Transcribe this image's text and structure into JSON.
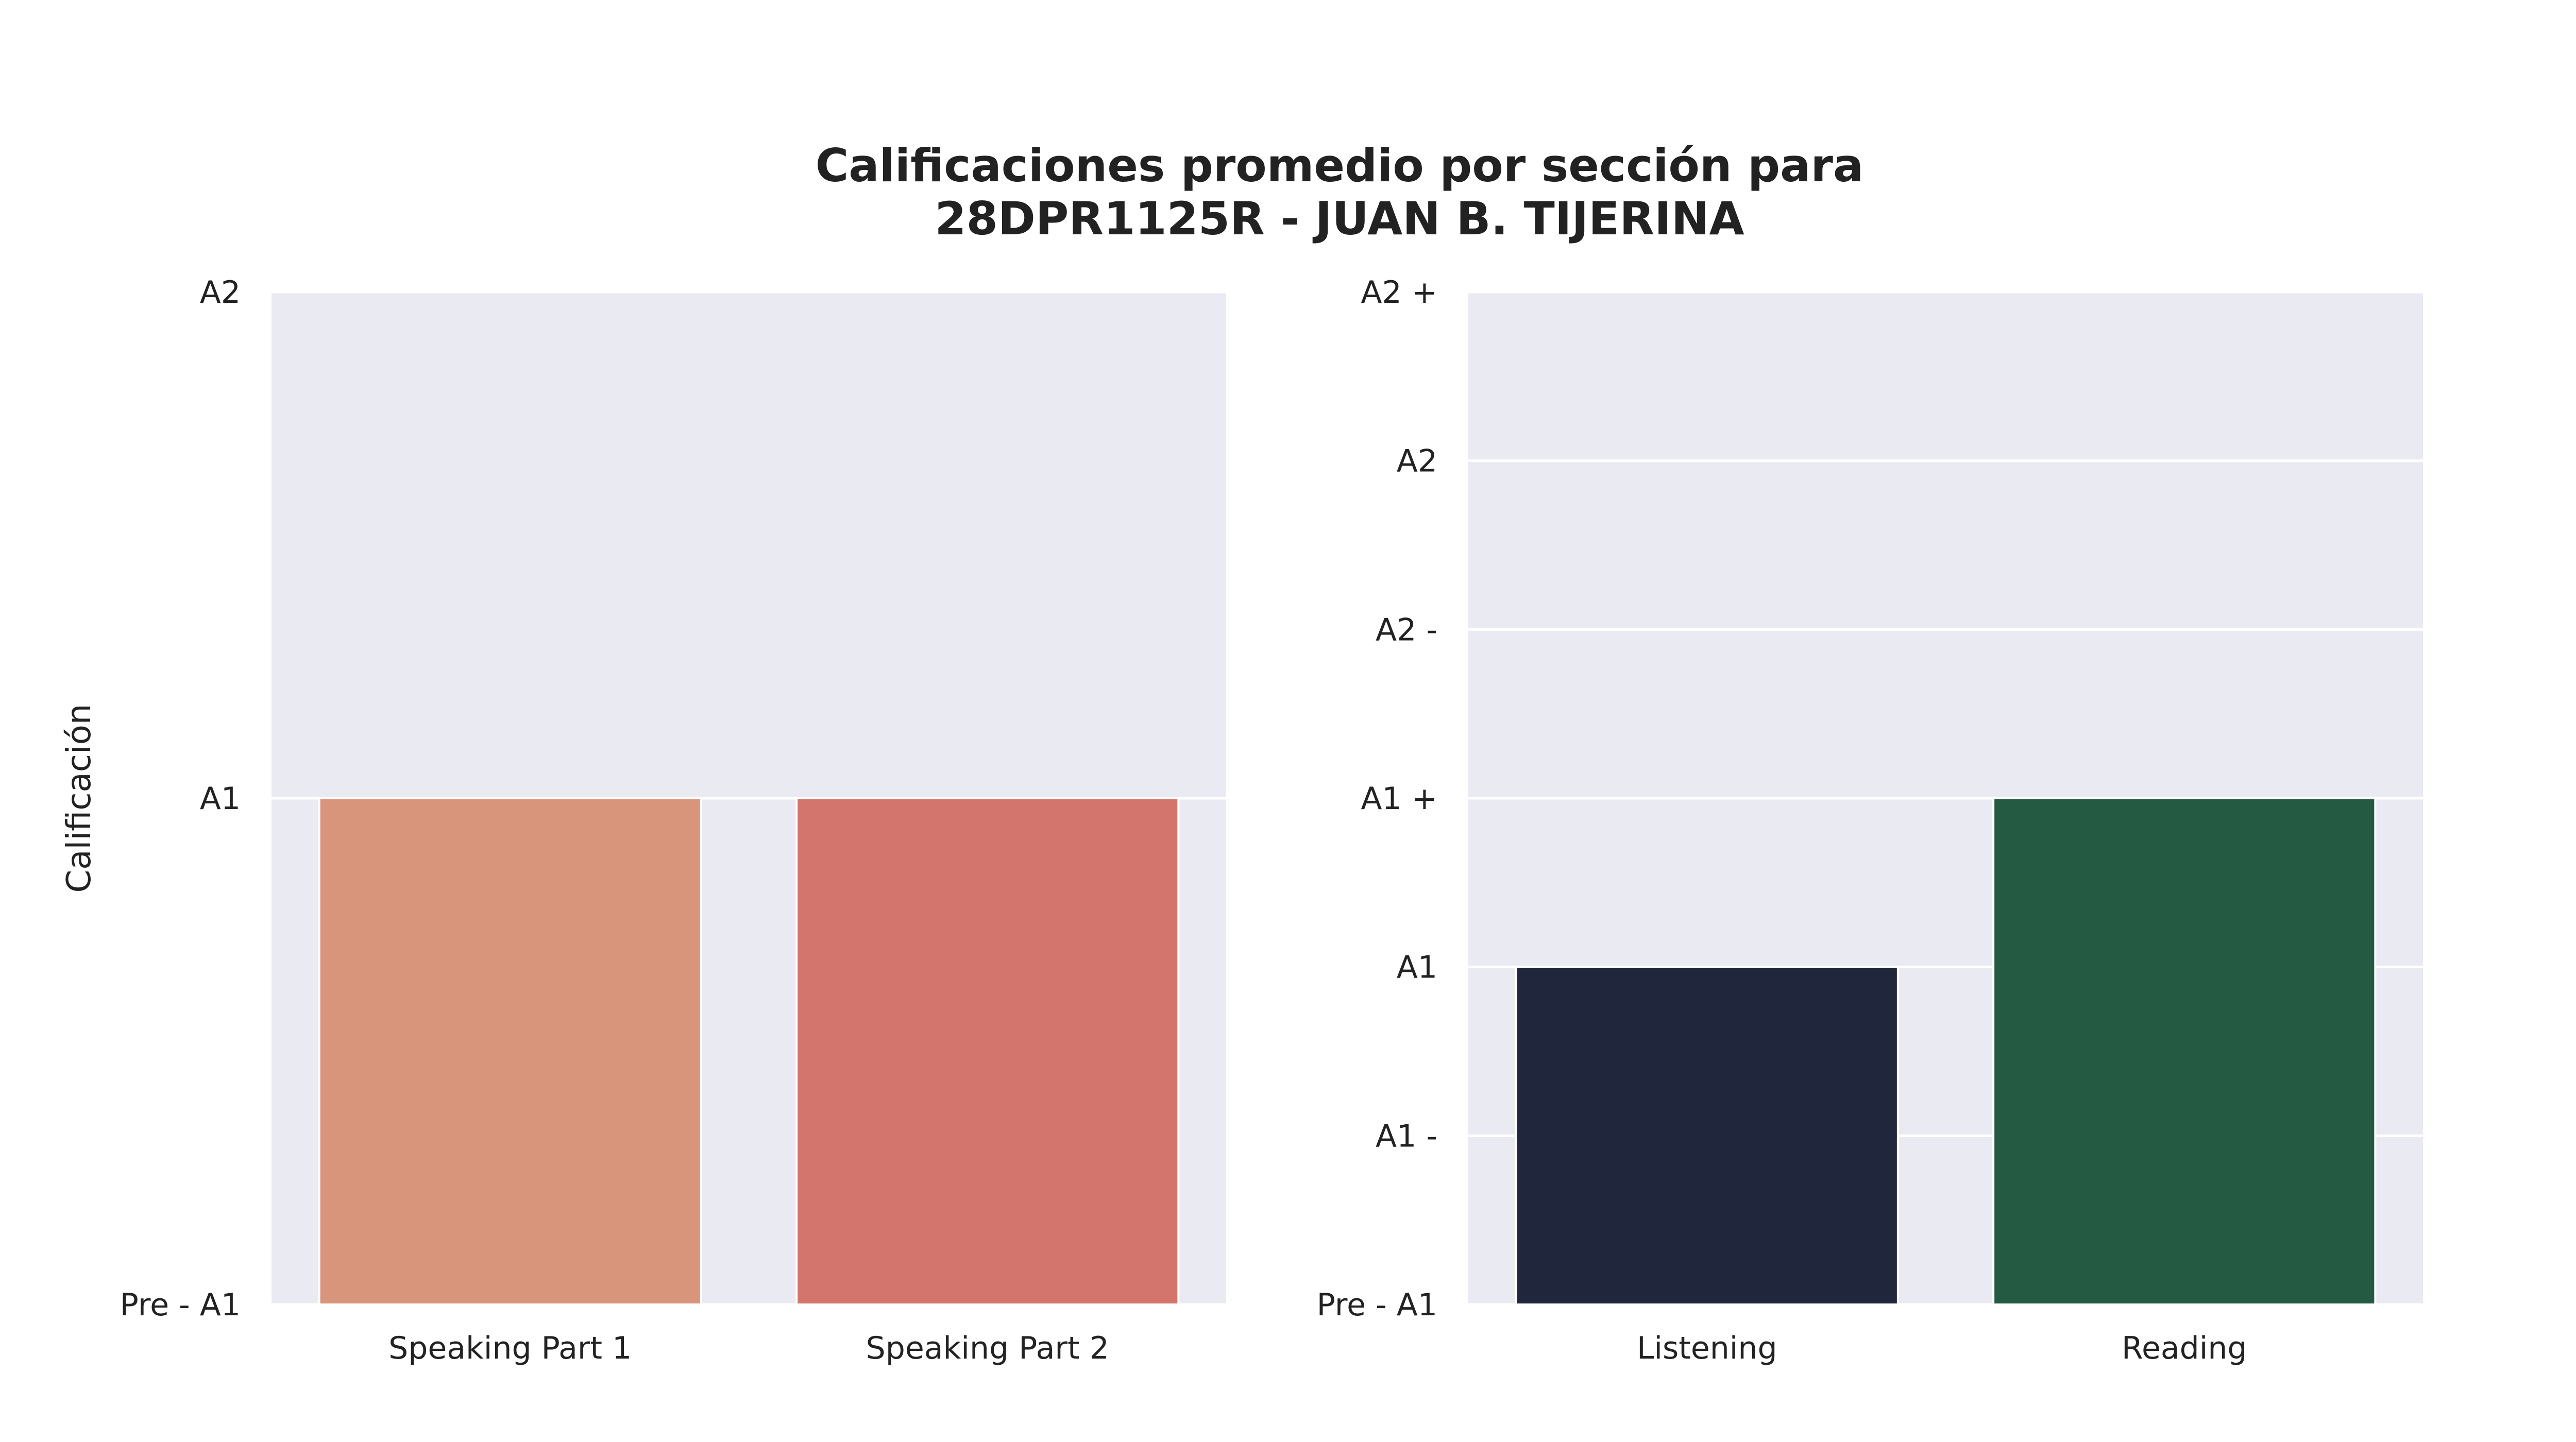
{
  "chart_data": [
    {
      "type": "bar",
      "title": "Calificaciones promedio por sección para\n28DPR1125R - JUAN B. TIJERINA",
      "ylabel": "Calificación",
      "xlabel": "",
      "categories": [
        "Speaking Part 1",
        "Speaking Part 2"
      ],
      "y_levels": [
        "Pre - A1",
        "A1",
        "A2"
      ],
      "values": [
        "A1",
        "A1"
      ],
      "value_index": [
        1,
        1
      ],
      "ylim_index": [
        0,
        2
      ],
      "grid": true,
      "colors": [
        "#d9957b",
        "#d3756c"
      ],
      "background": "#eaeaf2"
    },
    {
      "type": "bar",
      "ylabel": "",
      "xlabel": "",
      "categories": [
        "Listening",
        "Reading"
      ],
      "y_levels": [
        "Pre - A1",
        "A1 -",
        "A1",
        "A1 +",
        "A2 -",
        "A2",
        "A2 +"
      ],
      "values": [
        "A1",
        "A1 +"
      ],
      "value_index": [
        2,
        3
      ],
      "ylim_index": [
        0,
        6
      ],
      "grid": true,
      "colors": [
        "#20263b",
        "#245942"
      ],
      "background": "#eaeaf2"
    }
  ]
}
